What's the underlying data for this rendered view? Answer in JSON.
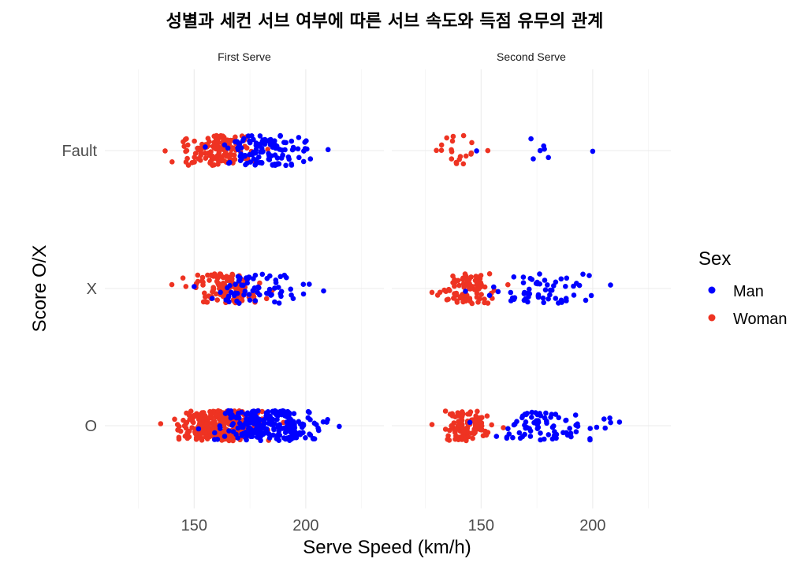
{
  "chart_data": {
    "type": "scatter",
    "title": "성별과 세컨 서브 여부에 따른 서브 속도와 득점 유무의 관계",
    "xlabel": "Serve Speed (km/h)",
    "ylabel": "Score O/X",
    "categories": [
      "O",
      "X",
      "Fault"
    ],
    "x_ticks": [
      150,
      200
    ],
    "xlim": [
      110,
      235
    ],
    "legend": {
      "title": "Sex",
      "position": "right",
      "entries": [
        {
          "name": "Man",
          "color": "#0000ff"
        },
        {
          "name": "Woman",
          "color": "#ee3322"
        }
      ]
    },
    "facets": [
      {
        "label": "First Serve",
        "groups": [
          {
            "category": "Fault",
            "sex": "Woman",
            "min": 137,
            "max": 183,
            "count": 140
          },
          {
            "category": "Fault",
            "sex": "Man",
            "min": 155,
            "max": 210,
            "count": 120
          },
          {
            "category": "X",
            "sex": "Woman",
            "min": 140,
            "max": 185,
            "count": 110
          },
          {
            "category": "X",
            "sex": "Man",
            "min": 150,
            "max": 208,
            "count": 70
          },
          {
            "category": "O",
            "sex": "Woman",
            "min": 135,
            "max": 190,
            "count": 300
          },
          {
            "category": "O",
            "sex": "Man",
            "min": 152,
            "max": 215,
            "count": 230
          }
        ]
      },
      {
        "label": "Second Serve",
        "groups": [
          {
            "category": "Fault",
            "sex": "Woman",
            "min": 130,
            "max": 153,
            "count": 20
          },
          {
            "category": "Fault",
            "sex": "Man",
            "min": 148,
            "max": 200,
            "count": 8
          },
          {
            "category": "X",
            "sex": "Woman",
            "min": 128,
            "max": 162,
            "count": 90
          },
          {
            "category": "X",
            "sex": "Man",
            "min": 143,
            "max": 208,
            "count": 60
          },
          {
            "category": "O",
            "sex": "Woman",
            "min": 128,
            "max": 160,
            "count": 110
          },
          {
            "category": "O",
            "sex": "Man",
            "min": 145,
            "max": 212,
            "count": 80
          }
        ]
      }
    ]
  }
}
